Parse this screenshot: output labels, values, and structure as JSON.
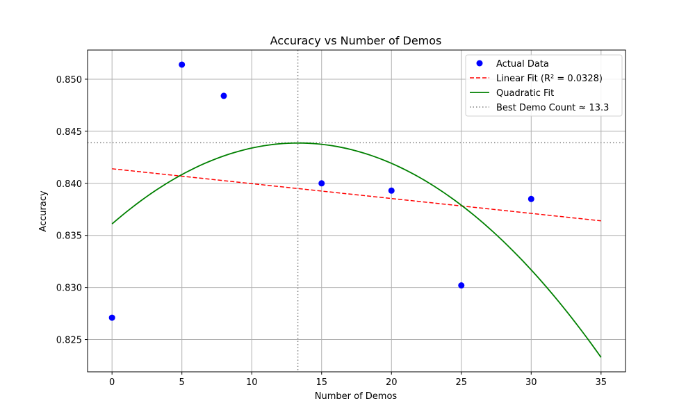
{
  "chart_data": {
    "type": "scatter",
    "title": "Accuracy vs Number of Demos",
    "xlabel": "Number of Demos",
    "ylabel": "Accuracy",
    "xlim": [
      -1.75,
      36.75
    ],
    "ylim": [
      0.8219,
      0.8528
    ],
    "xticks": [
      0,
      5,
      10,
      15,
      20,
      25,
      30,
      35
    ],
    "xtick_labels": [
      "0",
      "5",
      "10",
      "15",
      "20",
      "25",
      "30",
      "35"
    ],
    "yticks": [
      0.825,
      0.83,
      0.835,
      0.84,
      0.845,
      0.85
    ],
    "ytick_labels": [
      "0.825",
      "0.830",
      "0.835",
      "0.840",
      "0.845",
      "0.850"
    ],
    "grid": true,
    "legend_position": "top-right",
    "series": [
      {
        "name": "Actual Data",
        "kind": "scatter",
        "color": "#0000ff",
        "x": [
          0,
          5,
          8,
          15,
          20,
          25,
          30
        ],
        "y": [
          0.8271,
          0.8514,
          0.8484,
          0.84,
          0.8393,
          0.8302,
          0.8385
        ]
      },
      {
        "name": "Linear Fit (R² = 0.0328)",
        "kind": "line",
        "style": "dashed",
        "color": "#ff0000",
        "x": [
          0,
          35
        ],
        "y": [
          0.8414,
          0.8364
        ]
      },
      {
        "name": "Quadratic Fit",
        "kind": "curve",
        "color": "#008000",
        "x_range": [
          0,
          35
        ],
        "coefficients": [
          0.8361,
          0.001167,
          -4.38e-05
        ]
      },
      {
        "name": "Best Demo Count ≈ 13.3",
        "kind": "crosshair",
        "style": "dotted",
        "color": "#808080",
        "x": 13.3,
        "y": 0.8439
      }
    ]
  }
}
